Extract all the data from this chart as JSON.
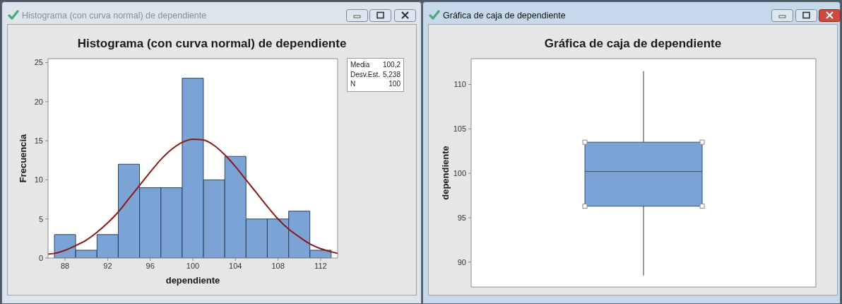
{
  "chart_data": [
    {
      "type": "histogram",
      "title": "Histograma (con curva normal) de dependiente",
      "xlabel": "dependiente",
      "ylabel": "Frecuencia",
      "bins": [
        87,
        89,
        91,
        93,
        95,
        97,
        99,
        101,
        103,
        105,
        107,
        109,
        111,
        113
      ],
      "values": [
        3,
        1,
        3,
        12,
        9,
        9,
        23,
        10,
        13,
        5,
        5,
        6,
        1
      ],
      "color": "#7ba3d6",
      "series": [
        {
          "type": "line",
          "color": "#8b1a1a",
          "x": [
            86.4,
            87,
            88,
            89,
            90,
            91,
            92,
            93,
            94,
            95,
            96,
            97,
            98,
            99,
            100,
            101,
            102,
            103,
            104,
            105,
            106,
            107,
            108,
            109,
            110,
            111,
            112,
            113,
            113.6
          ],
          "values": [
            0.5,
            0.6,
            1.0,
            1.6,
            2.3,
            3.3,
            4.5,
            5.9,
            7.6,
            9.3,
            11.0,
            12.6,
            13.9,
            14.8,
            15.2,
            15.1,
            14.4,
            13.2,
            11.7,
            10.0,
            8.3,
            6.6,
            5.0,
            3.7,
            2.7,
            1.8,
            1.2,
            0.8,
            0.6
          ]
        }
      ],
      "xlim": [
        86.4,
        113.6
      ],
      "xticks": [
        88,
        92,
        96,
        100,
        104,
        108,
        112
      ],
      "ylim": [
        0,
        25.5
      ],
      "yticks": [
        0,
        5,
        10,
        15,
        20,
        25
      ],
      "annotations": [
        "Media",
        "100,2",
        "Desv.Est.",
        "5,238",
        "N",
        "100"
      ]
    },
    {
      "type": "box",
      "title": "Gráfica de caja de dependiente",
      "ylabel": "dependiente",
      "categories": [
        null
      ],
      "color": "#7ba3d6",
      "boxes": [
        {
          "low": 88.5,
          "q1": 96.3,
          "median": 100.2,
          "q3": 103.5,
          "high": 111.5
        }
      ],
      "ylim": [
        87.2,
        112.9
      ],
      "yticks": [
        90,
        95,
        100,
        105,
        110
      ]
    }
  ]
}
